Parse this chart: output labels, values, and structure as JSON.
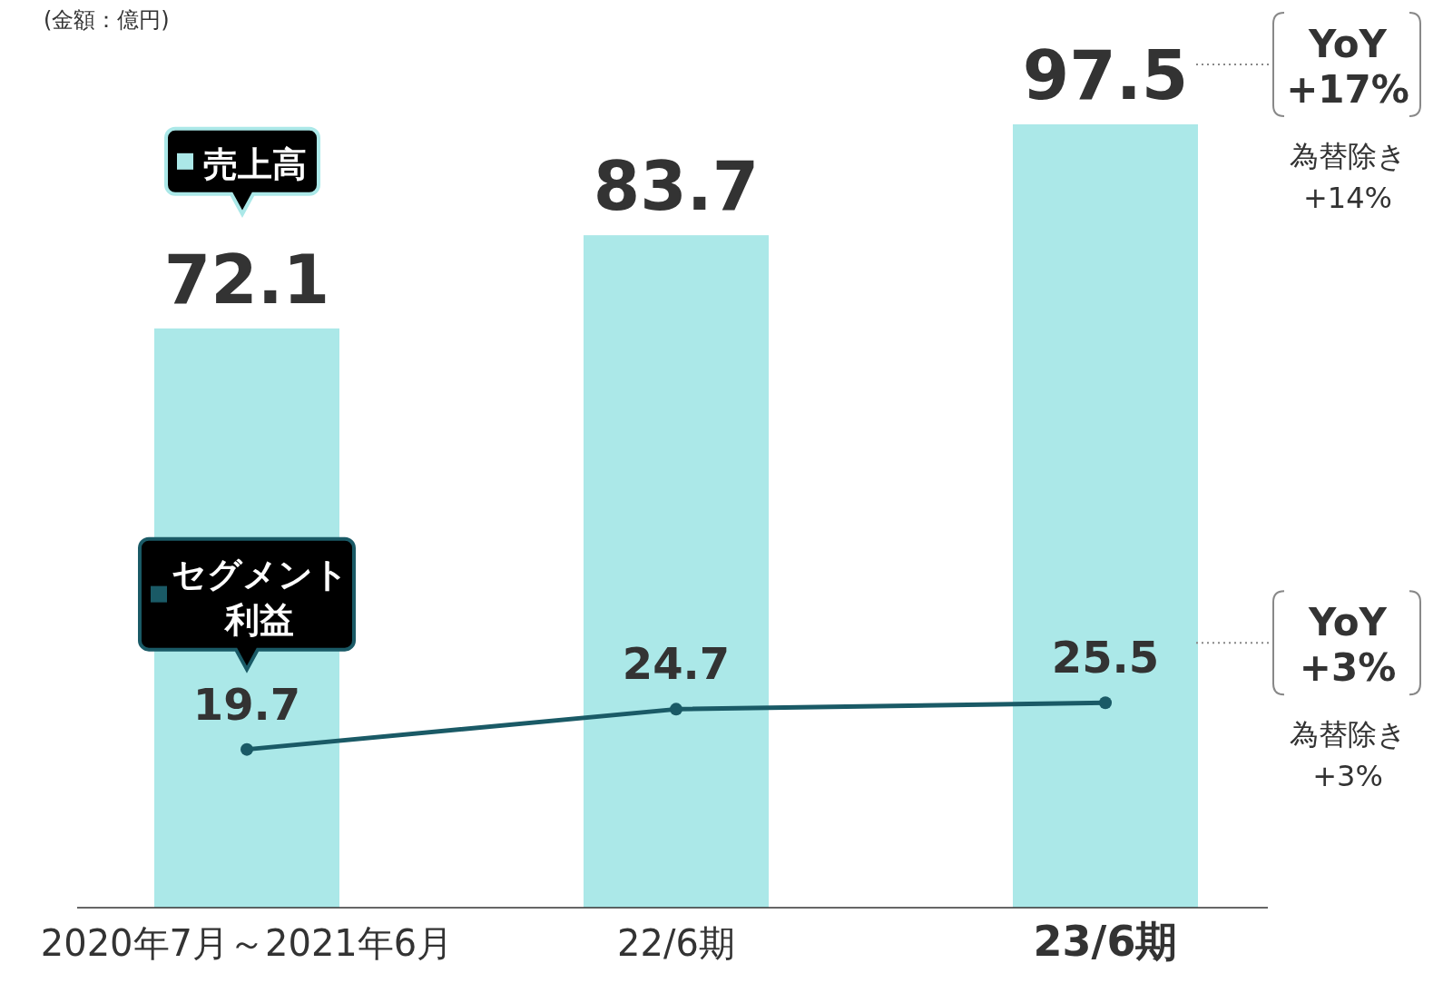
{
  "chart_data": {
    "type": "bar",
    "categories": [
      "2020年7月～2021年6月",
      "22/6期",
      "23/6期"
    ],
    "series": [
      {
        "name": "売上高",
        "color": "#abe8e8",
        "values": [
          72.1,
          83.7,
          97.5
        ]
      },
      {
        "name": "セグメント利益",
        "type": "line",
        "color": "#1a5a66",
        "values": [
          19.7,
          24.7,
          25.5
        ],
        "marker": "circle"
      }
    ],
    "tick_labels": "x",
    "data_labels": true,
    "legend": "left",
    "annotations": [
      "(金額：億円)",
      "YoY\n+17%",
      "為替除き\n+14%",
      "YoY\n+3%",
      "為替除き\n+3%"
    ]
  }
}
